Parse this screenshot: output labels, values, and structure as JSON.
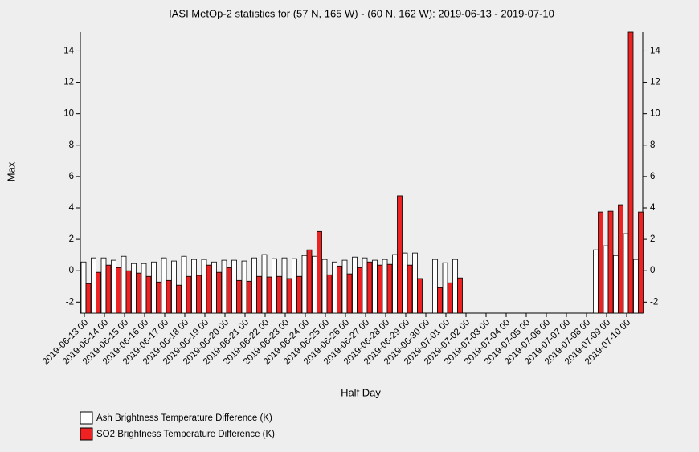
{
  "chart_data": {
    "type": "bar",
    "title": "IASI MetOp-2 statistics for (57 N, 165 W) - (60 N, 162 W): 2019-06-13 - 2019-07-10",
    "x_label": "Half Day",
    "y_label": "Max",
    "categories": [
      "2019-06-13 00",
      null,
      "2019-06-14 00",
      null,
      "2019-06-15 00",
      null,
      "2019-06-16 00",
      null,
      "2019-06-17 00",
      null,
      "2019-06-18 00",
      null,
      "2019-06-19 00",
      null,
      "2019-06-20 00",
      null,
      "2019-06-21 00",
      null,
      "2019-06-22 00",
      null,
      "2019-06-23 00",
      null,
      "2019-06-24 00",
      null,
      "2019-06-25 00",
      null,
      "2019-06-26 00",
      null,
      "2019-06-27 00",
      null,
      "2019-06-28 00",
      null,
      "2019-06-29 00",
      null,
      "2019-06-30 00",
      null,
      "2019-07-01 00",
      null,
      "2019-07-02 00",
      null,
      "2019-07-03 00",
      null,
      "2019-07-04 00",
      null,
      "2019-07-05 00",
      null,
      "2019-07-06 00",
      null,
      "2019-07-07 00",
      null,
      "2019-07-08 00",
      null,
      "2019-07-09 00",
      null,
      "2019-07-10 00",
      null
    ],
    "series": [
      {
        "name": "Ash Brightness Temperature Difference (K)",
        "color": "#ffffff",
        "values": [
          0.56,
          0.82,
          0.82,
          0.67,
          0.92,
          0.46,
          0.46,
          0.56,
          0.82,
          0.62,
          0.92,
          0.72,
          0.72,
          0.56,
          0.67,
          0.67,
          0.62,
          0.82,
          1.03,
          0.77,
          0.82,
          0.77,
          0.97,
          0.92,
          0.72,
          0.56,
          0.67,
          0.87,
          0.82,
          0.67,
          0.72,
          1.03,
          1.13,
          1.13,
          null,
          0.72,
          0.51,
          0.72,
          null,
          null,
          null,
          null,
          null,
          null,
          null,
          null,
          null,
          null,
          null,
          null,
          null,
          1.33,
          1.59,
          0.97,
          2.36,
          0.72
        ]
      },
      {
        "name": "SO2 Brightness Temperature Difference (K)",
        "color": "#ee2222",
        "values": [
          -0.82,
          -0.1,
          0.36,
          0.2,
          0,
          -0.15,
          -0.36,
          -0.72,
          -0.62,
          -0.92,
          -0.36,
          -0.3,
          0.36,
          -0.1,
          0.2,
          -0.62,
          -0.67,
          -0.36,
          -0.4,
          -0.36,
          -0.5,
          -0.36,
          1.33,
          2.5,
          -0.26,
          0.3,
          -0.2,
          0.2,
          0.56,
          0.36,
          0.41,
          4.77,
          0.36,
          -0.5,
          null,
          -1.08,
          -0.77,
          -0.46,
          null,
          null,
          null,
          null,
          null,
          null,
          null,
          null,
          null,
          null,
          null,
          null,
          null,
          3.74,
          3.79,
          4.2,
          15.2,
          3.74
        ]
      }
    ],
    "ylim": [
      -2.7,
      15.2
    ],
    "yticks": [
      -2,
      0,
      2,
      4,
      6,
      8,
      10,
      12,
      14
    ]
  }
}
